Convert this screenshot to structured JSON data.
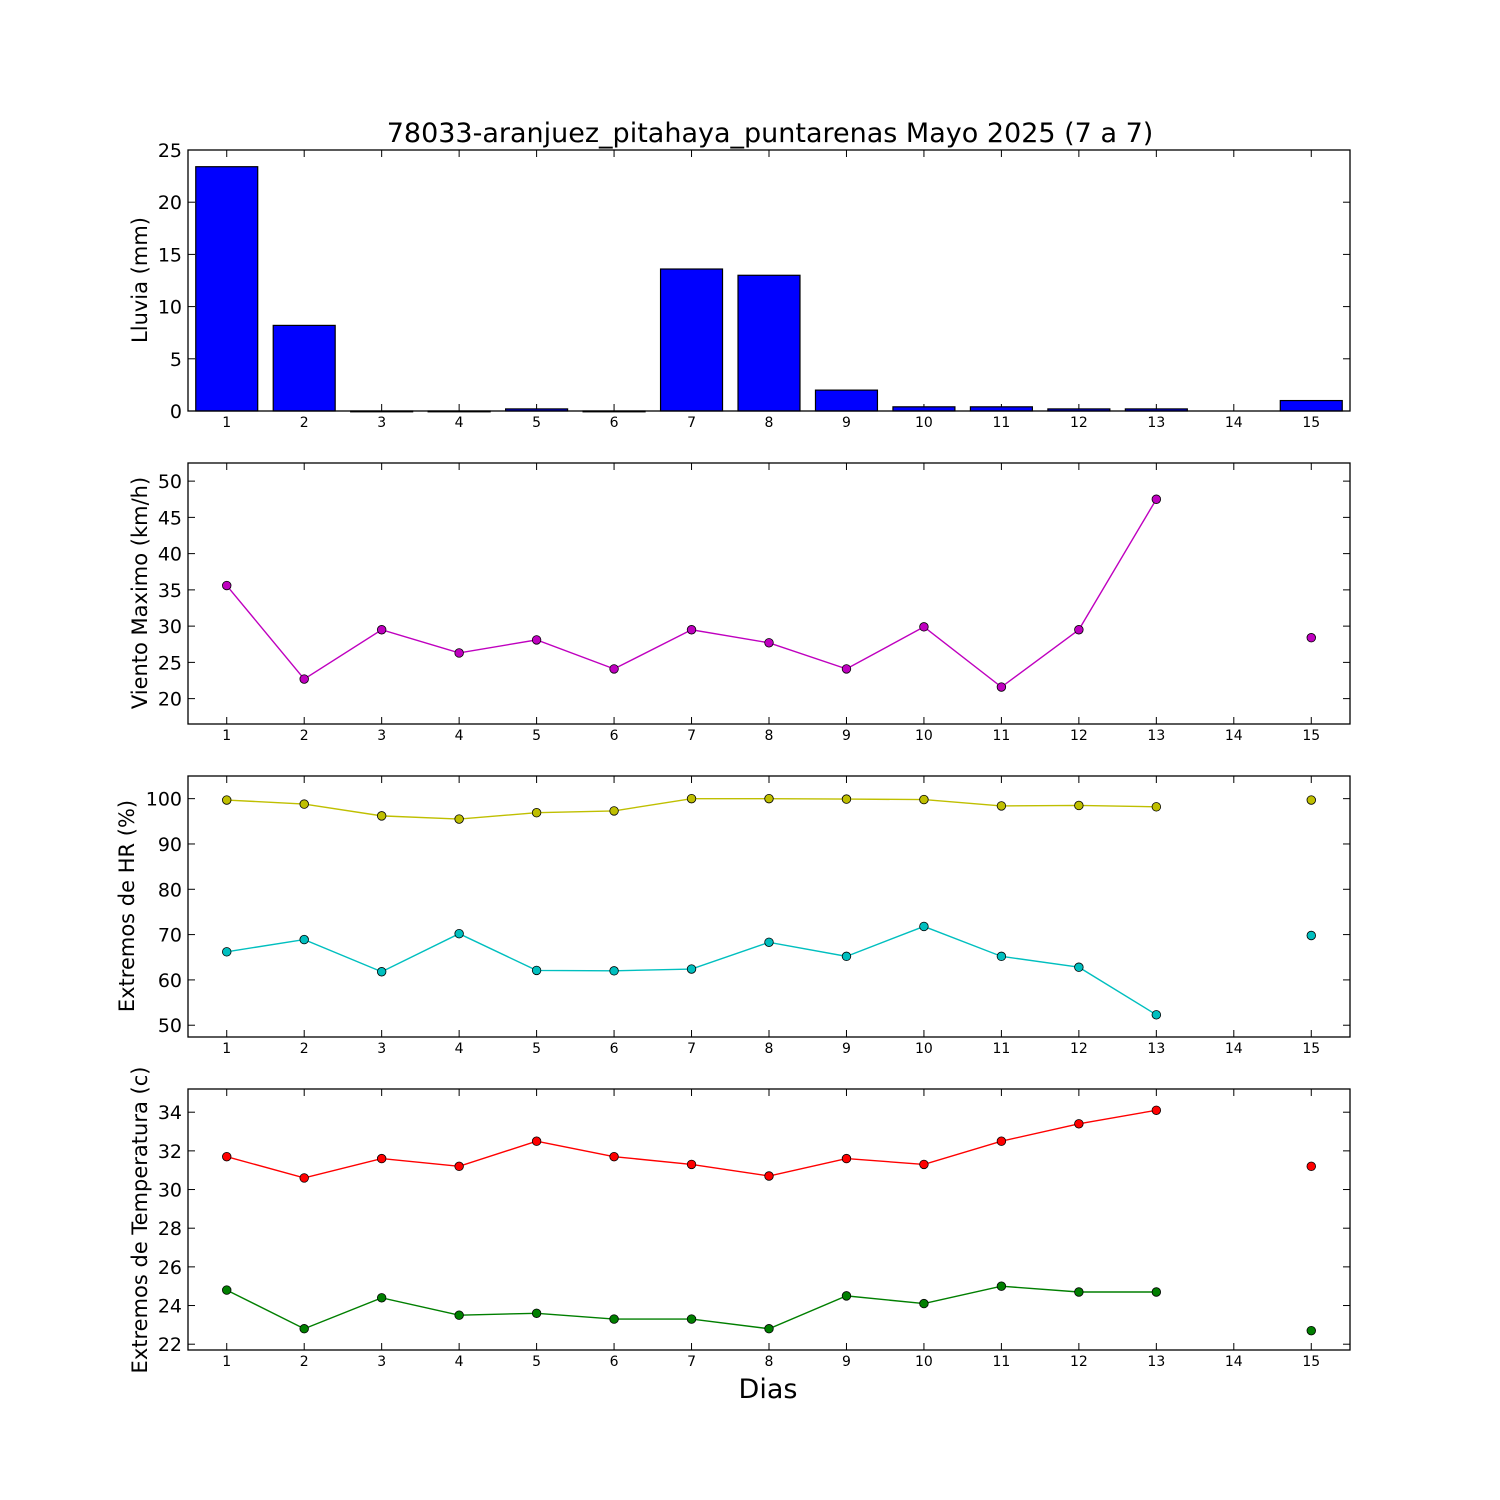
{
  "chart_data": [
    {
      "type": "bar",
      "title": "78033-aranjuez_pitahaya_puntarenas Mayo 2025  (7 a 7)",
      "xlabel": "",
      "ylabel": "Lluvia (mm)",
      "categories": [
        "1",
        "2",
        "3",
        "4",
        "5",
        "6",
        "7",
        "8",
        "9",
        "10",
        "11",
        "12",
        "13",
        "14",
        "15"
      ],
      "series": [
        {
          "color": "#0000ff",
          "values": [
            23.4,
            8.2,
            0.0,
            0.0,
            0.2,
            0.0,
            13.6,
            13.0,
            2.0,
            0.4,
            0.4,
            0.2,
            0.2,
            null,
            1.0
          ]
        }
      ],
      "ylim": [
        0,
        25
      ],
      "yticks": [
        0,
        5,
        10,
        15,
        20,
        25
      ]
    },
    {
      "type": "line",
      "title": "",
      "xlabel": "",
      "ylabel": "Viento Maximo (km/h)",
      "categories": [
        "1",
        "2",
        "3",
        "4",
        "5",
        "6",
        "7",
        "8",
        "9",
        "10",
        "11",
        "12",
        "13",
        "14",
        "15"
      ],
      "series": [
        {
          "color": "#bf00bf",
          "values": [
            35.6,
            22.7,
            29.5,
            26.3,
            28.1,
            24.1,
            29.5,
            27.7,
            24.1,
            29.9,
            21.6,
            29.5,
            47.5,
            null,
            28.4
          ]
        }
      ],
      "ylim": [
        16.5,
        52.5
      ],
      "yticks": [
        20,
        25,
        30,
        35,
        40,
        45,
        50
      ]
    },
    {
      "type": "line",
      "title": "",
      "xlabel": "",
      "ylabel": "Extremos de HR (%)",
      "categories": [
        "1",
        "2",
        "3",
        "4",
        "5",
        "6",
        "7",
        "8",
        "9",
        "10",
        "11",
        "12",
        "13",
        "14",
        "15"
      ],
      "series": [
        {
          "color": "#bfbf00",
          "values": [
            99.7,
            98.8,
            96.2,
            95.5,
            96.9,
            97.3,
            100.0,
            100.0,
            99.9,
            99.8,
            98.4,
            98.5,
            98.2,
            null,
            99.7
          ]
        },
        {
          "color": "#00bfbf",
          "values": [
            66.2,
            68.9,
            61.8,
            70.2,
            62.1,
            62.0,
            62.4,
            68.3,
            65.2,
            71.8,
            65.2,
            62.8,
            52.3,
            null,
            69.8
          ]
        }
      ],
      "ylim": [
        47.4,
        105
      ],
      "yticks": [
        50,
        60,
        70,
        80,
        90,
        100
      ]
    },
    {
      "type": "line",
      "title": "",
      "xlabel": "Dias",
      "ylabel": "Extremos de Temperatura (c)",
      "categories": [
        "1",
        "2",
        "3",
        "4",
        "5",
        "6",
        "7",
        "8",
        "9",
        "10",
        "11",
        "12",
        "13",
        "14",
        "15"
      ],
      "series": [
        {
          "color": "#ff0000",
          "values": [
            31.7,
            30.6,
            31.6,
            31.2,
            32.5,
            31.7,
            31.3,
            30.7,
            31.6,
            31.3,
            32.5,
            33.4,
            34.1,
            null,
            31.2
          ]
        },
        {
          "color": "#007f00",
          "values": [
            24.8,
            22.8,
            24.4,
            23.5,
            23.6,
            23.3,
            23.3,
            22.8,
            24.5,
            24.1,
            25.0,
            24.7,
            24.7,
            null,
            22.7
          ]
        }
      ],
      "ylim": [
        21.7,
        35.2
      ],
      "yticks": [
        22,
        24,
        26,
        28,
        30,
        32,
        34
      ]
    }
  ]
}
